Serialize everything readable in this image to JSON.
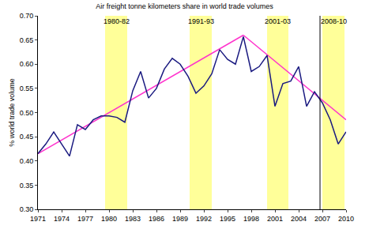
{
  "chart_data": {
    "type": "line",
    "title": "Air freight tonne kilometers share in world trade volumes",
    "y_label": "% world trade volume",
    "x": [
      1971,
      1972,
      1973,
      1974,
      1975,
      1976,
      1977,
      1978,
      1979,
      1980,
      1981,
      1982,
      1983,
      1984,
      1985,
      1986,
      1987,
      1988,
      1989,
      1990,
      1991,
      1992,
      1993,
      1994,
      1995,
      1996,
      1997,
      1998,
      1999,
      2000,
      2001,
      2002,
      2003,
      2004,
      2005,
      2006,
      2007,
      2008,
      2009,
      2010
    ],
    "series": [
      {
        "color": "#1a1a80",
        "values": [
          0.415,
          0.435,
          0.46,
          0.435,
          0.41,
          0.475,
          0.465,
          0.485,
          0.493,
          0.493,
          0.49,
          0.48,
          0.545,
          0.585,
          0.53,
          0.55,
          0.59,
          0.612,
          0.6,
          0.575,
          0.54,
          0.555,
          0.58,
          0.63,
          0.61,
          0.6,
          0.657,
          0.585,
          0.595,
          0.618,
          0.513,
          0.56,
          0.565,
          0.595,
          0.513,
          0.543,
          0.52,
          0.485,
          0.435,
          0.46
        ]
      }
    ],
    "trend_lines": [
      {
        "color": "#ff33cc",
        "x": [
          1971,
          1997
        ],
        "values": [
          0.415,
          0.66
        ]
      },
      {
        "color": "#ff33cc",
        "x": [
          1997,
          2010
        ],
        "values": [
          0.66,
          0.485
        ]
      }
    ],
    "shaded_periods": [
      {
        "label": "1980-82",
        "start": 1979.5,
        "end": 1982.3,
        "color": "#ffff99"
      },
      {
        "label": "1991-93",
        "start": 1990.2,
        "end": 1993,
        "color": "#ffff99"
      },
      {
        "label": "2001-03",
        "start": 2000,
        "end": 2002.7,
        "color": "#ffff99"
      },
      {
        "label": "2008-10",
        "start": 2007,
        "end": 2009.8,
        "color": "#ffff99"
      }
    ],
    "vertical_line": {
      "x": 2006.7,
      "color": "#000000"
    },
    "xlim": [
      1971,
      2010
    ],
    "xticks": [
      1971,
      1974,
      1977,
      1980,
      1983,
      1986,
      1989,
      1992,
      1995,
      1998,
      2001,
      2004,
      2007,
      2010
    ],
    "ylim": [
      0.3,
      0.7
    ],
    "yticks": [
      {
        "value": 0.3,
        "label": "0.30"
      },
      0.35,
      {
        "value": 0.4,
        "label": "0.40"
      },
      0.45,
      {
        "value": 0.5,
        "label": "0.50"
      },
      0.55,
      {
        "value": 0.6,
        "label": "0.60"
      },
      0.65,
      {
        "value": 0.7,
        "label": "0.70"
      }
    ],
    "grid": false
  }
}
